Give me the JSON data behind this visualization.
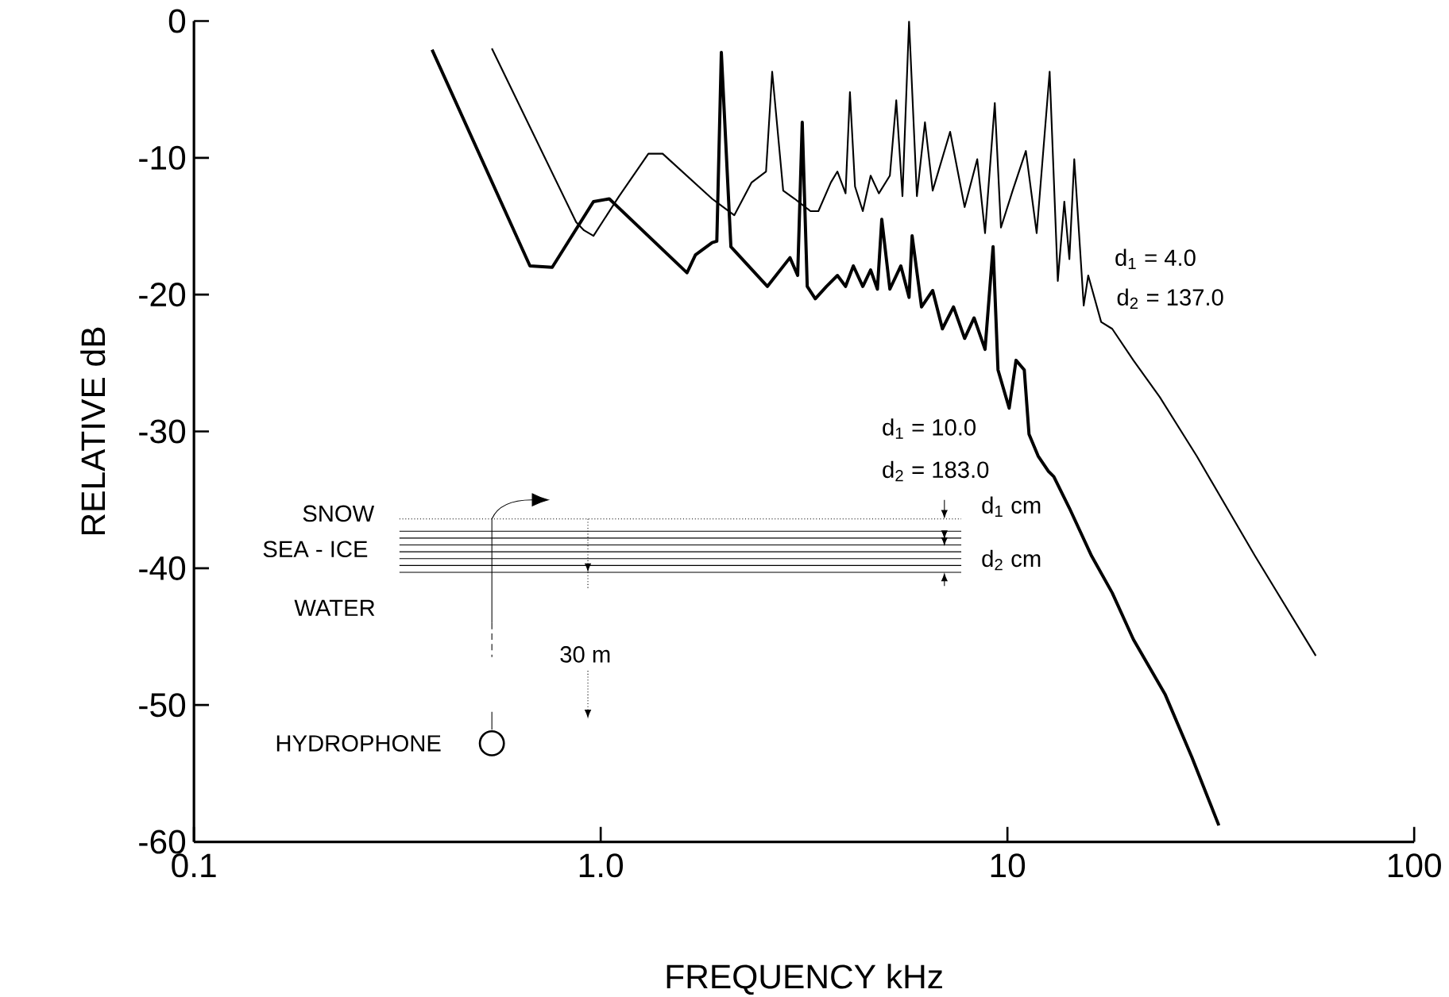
{
  "chart_data": {
    "type": "line",
    "xlabel": "FREQUENCY  kHz",
    "ylabel": "RELATIVE  dB",
    "log": "x",
    "xlim": [
      0.1,
      100
    ],
    "ylim": [
      -60,
      0
    ],
    "xticks": [
      0.1,
      {
        "value": 1,
        "label": "1.0"
      },
      10,
      100
    ],
    "yticks": [
      0,
      -10,
      -20,
      -30,
      -40,
      -50,
      -60
    ],
    "series": [
      {
        "color": "#000000",
        "x": [
          0.54,
          0.87,
          0.91,
          0.96,
          1.11,
          1.31,
          1.42,
          1.88,
          2.13,
          2.35,
          2.55,
          2.64,
          2.81,
          3.0,
          3.28,
          3.43,
          3.68,
          3.82,
          4.0,
          4.1,
          4.22,
          4.41,
          4.61,
          4.83,
          5.14,
          5.33,
          5.52,
          5.73,
          5.99,
          6.27,
          6.55,
          7.23,
          7.85,
          8.43,
          8.81,
          9.31,
          9.64,
          10.3,
          11.1,
          11.8,
          12.7,
          13.3,
          13.8,
          14.2,
          14.6,
          15.4,
          15.8,
          17.0,
          18.1,
          20.4,
          23.7,
          29.2,
          40.6,
          57.3
        ],
        "values": [
          -2.0,
          -14.7,
          -15.3,
          -15.7,
          -12.8,
          -9.7,
          -9.7,
          -13.0,
          -14.2,
          -11.8,
          -11.0,
          -3.7,
          -12.4,
          -13.0,
          -13.9,
          -13.9,
          -11.8,
          -11.0,
          -12.6,
          -5.2,
          -12.1,
          -13.9,
          -11.3,
          -12.6,
          -11.3,
          -5.8,
          -12.8,
          0,
          -12.8,
          -7.4,
          -12.4,
          -8.1,
          -13.6,
          -10.1,
          -15.5,
          -6.0,
          -15.1,
          -12.4,
          -9.5,
          -15.5,
          -3.7,
          -19.0,
          -13.2,
          -17.4,
          -10.1,
          -20.8,
          -18.6,
          -22.0,
          -22.5,
          -24.8,
          -27.5,
          -31.8,
          -39.1,
          -46.4
        ]
      },
      {
        "color": "#000000",
        "x": [
          0.385,
          0.67,
          0.76,
          0.96,
          1.05,
          1.63,
          1.71,
          1.88,
          1.93,
          1.98,
          2.09,
          2.57,
          2.92,
          3.05,
          3.13,
          3.22,
          3.37,
          3.59,
          3.82,
          4.0,
          4.18,
          4.41,
          4.61,
          4.79,
          4.91,
          5.14,
          5.47,
          5.73,
          5.83,
          6.15,
          6.55,
          6.92,
          7.37,
          7.85,
          8.28,
          8.81,
          9.22,
          9.48,
          10.1,
          10.5,
          11.0,
          11.3,
          11.9,
          12.6,
          13.0,
          14.2,
          16.1,
          18.1,
          20.4,
          24.4,
          28.4,
          33.1
        ],
        "values": [
          -2.1,
          -17.9,
          -18.0,
          -13.2,
          -13.0,
          -18.4,
          -17.1,
          -16.2,
          -16.1,
          -2.3,
          -16.5,
          -19.4,
          -17.3,
          -18.6,
          -7.4,
          -19.4,
          -20.3,
          -19.4,
          -18.6,
          -19.4,
          -17.9,
          -19.4,
          -18.2,
          -19.6,
          -14.5,
          -19.6,
          -17.9,
          -20.2,
          -15.7,
          -20.9,
          -19.7,
          -22.5,
          -20.9,
          -23.2,
          -21.7,
          -24.0,
          -16.5,
          -25.5,
          -28.3,
          -24.8,
          -25.5,
          -30.2,
          -31.8,
          -32.9,
          -33.3,
          -35.6,
          -39.1,
          -41.8,
          -45.2,
          -49.2,
          -53.8,
          -58.8
        ]
      }
    ],
    "annotations": [
      "SNOW",
      "SEA - ICE",
      "WATER",
      "HYDROPHONE",
      "30 m",
      "d$_{1}$ cm",
      "d$_{2}$ cm",
      "d$_{1}$ = 4.0",
      "d$_{2}$ = 137.0",
      "d$_{1}$ = 10.0",
      "d$_{2}$ = 183.0"
    ]
  }
}
